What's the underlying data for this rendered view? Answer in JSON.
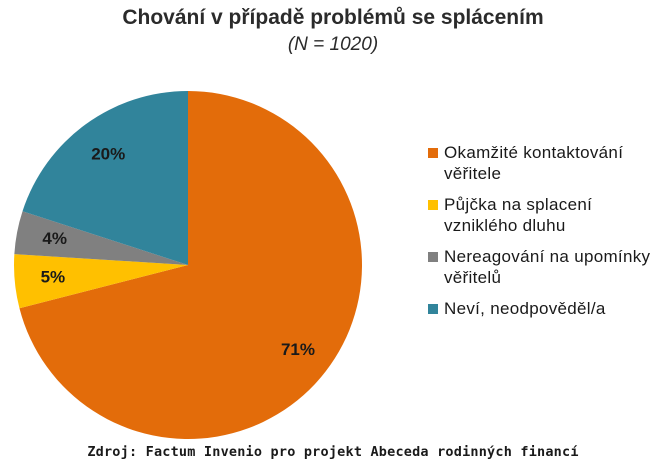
{
  "chart_data": {
    "type": "pie",
    "title": "Chování v případě problémů se splácením",
    "subtitle": "(N = 1020)",
    "slices": [
      {
        "label": "Okamžité kontaktování věřitele",
        "value": 71,
        "display": "71%",
        "color": "#e36c0a"
      },
      {
        "label": "Půjčka na splacení vzniklého dluhu",
        "value": 5,
        "display": "5%",
        "color": "#ffc000"
      },
      {
        "label": "Nereagování na upomínky věřitelů",
        "value": 4,
        "display": "4%",
        "color": "#808080"
      },
      {
        "label": "Neví, neodpověděl/a",
        "value": 20,
        "display": "20%",
        "color": "#31849b"
      }
    ],
    "legend_position": "right"
  },
  "source": "Zdroj: Factum Invenio pro projekt Abeceda rodinných financí"
}
